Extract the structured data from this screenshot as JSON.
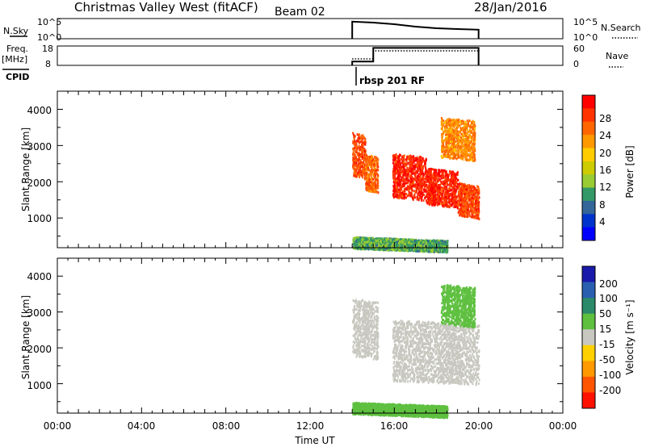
{
  "header": {
    "title": "Christmas Valley West (fitACF)",
    "beam": "Beam 02",
    "date": "28/Jan/2016"
  },
  "nsky_panel": {
    "left_label": "N.Sky",
    "left_ticks": [
      "10^5",
      "10^0"
    ],
    "right_ticks": [
      "10^5",
      "10^0"
    ],
    "right_label": "N.Search"
  },
  "freq_panel": {
    "left_label_1": "Freq.",
    "left_label_2": "[MHz]",
    "left_ticks": [
      "18",
      "8"
    ],
    "right_ticks": [
      "60",
      "0"
    ],
    "right_label": "Nave"
  },
  "cpid": {
    "label": "CPID",
    "program": "rbsp 201 RF"
  },
  "power_panel": {
    "ylabel": "Slant Range [km]",
    "yticks": [
      "4000",
      "3000",
      "2000",
      "1000"
    ],
    "colorbar_label": "Power [dB]",
    "colorbar_ticks": [
      "28",
      "24",
      "20",
      "16",
      "12",
      "8",
      "4"
    ],
    "colors": [
      "#ff0000",
      "#ff3300",
      "#ff6600",
      "#ff9900",
      "#ffcc00",
      "#cccc00",
      "#99cc33",
      "#339966",
      "#336699",
      "#0033cc",
      "#0000ff"
    ]
  },
  "velocity_panel": {
    "ylabel": "Slant Range [km]",
    "yticks": [
      "4000",
      "3000",
      "2000",
      "1000"
    ],
    "colorbar_label": "Velocity [m s⁻¹]",
    "colorbar_ticks": [
      "200",
      "100",
      "50",
      "15",
      "-15",
      "-50",
      "-100",
      "-200"
    ],
    "colors": [
      "#1a1aaa",
      "#2a5fb0",
      "#2a8a6a",
      "#5fc040",
      "#c8c8c0",
      "#ffd000",
      "#ff9900",
      "#ff5500",
      "#ff1100"
    ]
  },
  "x_axis": {
    "ticks": [
      "00:00",
      "04:00",
      "08:00",
      "12:00",
      "16:00",
      "20:00",
      "00:00"
    ],
    "label": "Time UT"
  },
  "chart_data": {
    "type": "heatmap",
    "x_range_hours": [
      0,
      24
    ],
    "y_range_km": [
      180,
      4500
    ],
    "data_extent_hours": [
      14.0,
      20.0
    ],
    "nsky_trace": [
      {
        "t": 14.0,
        "v": 0.85
      },
      {
        "t": 15.0,
        "v": 0.8
      },
      {
        "t": 16.0,
        "v": 0.72
      },
      {
        "t": 17.0,
        "v": 0.6
      },
      {
        "t": 18.0,
        "v": 0.52
      },
      {
        "t": 19.0,
        "v": 0.48
      },
      {
        "t": 20.0,
        "v": 0.45
      }
    ],
    "frequency_mhz_steps": [
      {
        "t0": 14.0,
        "t1": 15.0,
        "v": 10
      },
      {
        "t0": 15.0,
        "t1": 20.0,
        "v": 17
      }
    ],
    "nave_steps": [
      {
        "t0": 14.0,
        "t1": 15.0,
        "v": 20
      },
      {
        "t0": 15.0,
        "t1": 20.0,
        "v": 45
      }
    ],
    "power_features": [
      {
        "t0": 14.0,
        "t1": 14.6,
        "r0": 2200,
        "r1": 3400,
        "db": 26
      },
      {
        "t0": 14.6,
        "t1": 15.2,
        "r0": 1800,
        "r1": 2800,
        "db": 24
      },
      {
        "t0": 15.9,
        "t1": 17.5,
        "r0": 1600,
        "r1": 2800,
        "db": 28
      },
      {
        "t0": 17.5,
        "t1": 19.0,
        "r0": 1400,
        "r1": 2400,
        "db": 28
      },
      {
        "t0": 19.0,
        "t1": 20.0,
        "r0": 1100,
        "r1": 2000,
        "db": 26
      },
      {
        "t0": 18.2,
        "t1": 19.8,
        "r0": 2700,
        "r1": 3800,
        "db": 22
      },
      {
        "t0": 14.0,
        "t1": 18.5,
        "r0": 180,
        "r1": 500,
        "db": 10
      }
    ],
    "velocity_features": [
      {
        "t0": 14.0,
        "t1": 15.2,
        "r0": 1800,
        "r1": 3400,
        "v": 0
      },
      {
        "t0": 15.9,
        "t1": 20.0,
        "r0": 1100,
        "r1": 2800,
        "v": 0
      },
      {
        "t0": 18.2,
        "t1": 19.8,
        "r0": 2700,
        "r1": 3800,
        "v": 20
      },
      {
        "t0": 14.0,
        "t1": 18.5,
        "r0": 180,
        "r1": 500,
        "v": 30
      }
    ]
  }
}
